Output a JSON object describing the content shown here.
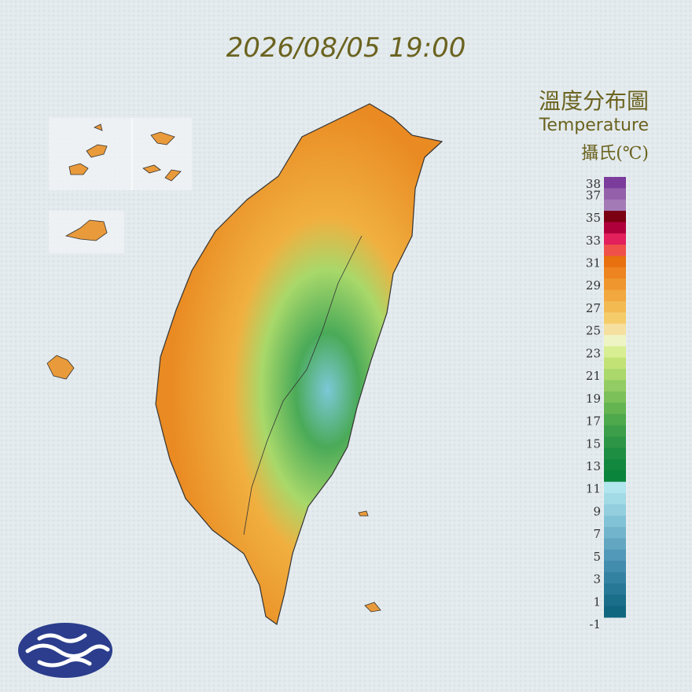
{
  "header": {
    "datetime": "2026/08/05 19:00"
  },
  "legend": {
    "title": "溫度分布圖",
    "subtitle": "Temperature",
    "unit": "攝氏(℃)",
    "labels": [
      38,
      37,
      35,
      33,
      31,
      29,
      27,
      25,
      23,
      21,
      19,
      17,
      15,
      13,
      11,
      9,
      7,
      5,
      3,
      1,
      -1
    ],
    "colors": [
      "#7b3c9c",
      "#9460aa",
      "#a47ab6",
      "#7a0012",
      "#b0003c",
      "#e2205c",
      "#f0504a",
      "#e8700e",
      "#ed8420",
      "#f0962e",
      "#f2a83e",
      "#f3ba52",
      "#f4cc6a",
      "#f6e0a0",
      "#eef4c4",
      "#d8ee92",
      "#c2e276",
      "#aad86a",
      "#92cc62",
      "#7cc05a",
      "#64b452",
      "#4ea84c",
      "#3c9e48",
      "#2c9646",
      "#1e8e42",
      "#12883e",
      "#0a843a",
      "#b2e6ee",
      "#a2dae6",
      "#92cede",
      "#82c2d6",
      "#72b4cc",
      "#62a6c2",
      "#5298b8",
      "#428cae",
      "#3482a2",
      "#267896",
      "#1a6e8a",
      "#10667e"
    ]
  }
}
